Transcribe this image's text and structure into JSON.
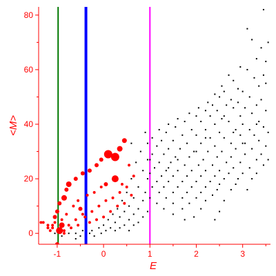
{
  "chart_data": {
    "type": "scatter",
    "title": "",
    "xlabel": "E",
    "ylabel": "<M>",
    "xlim": [
      -1.4,
      3.6
    ],
    "ylim": [
      -4,
      83
    ],
    "xticks": [
      -1,
      0,
      1,
      2,
      3
    ],
    "xtick_labels": [
      "-1",
      "0",
      "1",
      "2",
      "3"
    ],
    "yticks": [
      0,
      20,
      40,
      60,
      80
    ],
    "ytick_labels": [
      "0",
      "20",
      "40",
      "60",
      "80"
    ],
    "grid": false,
    "legend": "none",
    "colors": {
      "axis": "#ff0000",
      "label": "#ff0000",
      "frame": "#000000",
      "line_green": "#007700",
      "line_blue": "#0000ff",
      "line_magenta": "#ff00ff",
      "points_black": "#000000",
      "points_red": "#ff0000"
    },
    "vlines": [
      {
        "x": -0.98,
        "color": "#007700",
        "width": 2
      },
      {
        "x": -0.38,
        "color": "#0000ff",
        "width": 4
      },
      {
        "x": 1.0,
        "color": "#ff00ff",
        "width": 2
      }
    ],
    "series": [
      {
        "marker": "black-dot",
        "points": [
          [
            3.45,
            82
          ],
          [
            3.1,
            75
          ],
          [
            3.2,
            71
          ],
          [
            3.4,
            68
          ],
          [
            3.55,
            70
          ],
          [
            3.3,
            64
          ],
          [
            3.5,
            63
          ],
          [
            2.95,
            61
          ],
          [
            3.1,
            60
          ],
          [
            2.7,
            58
          ],
          [
            2.8,
            56
          ],
          [
            3.25,
            57
          ],
          [
            3.45,
            58
          ],
          [
            2.55,
            54
          ],
          [
            2.6,
            52
          ],
          [
            2.9,
            53
          ],
          [
            3.0,
            52
          ],
          [
            3.35,
            54
          ],
          [
            3.5,
            55
          ],
          [
            2.4,
            51
          ],
          [
            2.5,
            50
          ],
          [
            2.75,
            49
          ],
          [
            3.15,
            50
          ],
          [
            2.25,
            48
          ],
          [
            2.35,
            47
          ],
          [
            2.65,
            47
          ],
          [
            2.9,
            48
          ],
          [
            3.4,
            49
          ],
          [
            2.05,
            46
          ],
          [
            2.2,
            45
          ],
          [
            2.45,
            45
          ],
          [
            2.8,
            46
          ],
          [
            3.05,
            46
          ],
          [
            3.3,
            47
          ],
          [
            1.85,
            44
          ],
          [
            2.0,
            43
          ],
          [
            2.3,
            43
          ],
          [
            2.55,
            42
          ],
          [
            2.95,
            43
          ],
          [
            3.2,
            44
          ],
          [
            3.5,
            45
          ],
          [
            1.6,
            42
          ],
          [
            1.75,
            41
          ],
          [
            2.1,
            41
          ],
          [
            2.4,
            40
          ],
          [
            2.7,
            41
          ],
          [
            3.0,
            40
          ],
          [
            3.35,
            41
          ],
          [
            1.4,
            40
          ],
          [
            1.55,
            39
          ],
          [
            1.9,
            38
          ],
          [
            2.2,
            38
          ],
          [
            2.5,
            37
          ],
          [
            2.85,
            38
          ],
          [
            3.15,
            38
          ],
          [
            3.45,
            39
          ],
          [
            1.2,
            38
          ],
          [
            1.35,
            37
          ],
          [
            1.7,
            36
          ],
          [
            2.0,
            36
          ],
          [
            2.3,
            35
          ],
          [
            2.6,
            35
          ],
          [
            2.95,
            36
          ],
          [
            3.25,
            36
          ],
          [
            3.55,
            37
          ],
          [
            1.05,
            35
          ],
          [
            1.25,
            34
          ],
          [
            1.5,
            34
          ],
          [
            1.8,
            33
          ],
          [
            2.1,
            33
          ],
          [
            2.4,
            32
          ],
          [
            2.75,
            33
          ],
          [
            3.05,
            33
          ],
          [
            3.35,
            34
          ],
          [
            1.15,
            32
          ],
          [
            1.4,
            31
          ],
          [
            1.65,
            31
          ],
          [
            1.95,
            30
          ],
          [
            2.25,
            30
          ],
          [
            2.55,
            30
          ],
          [
            2.85,
            31
          ],
          [
            3.2,
            31
          ],
          [
            3.5,
            32
          ],
          [
            1.05,
            29
          ],
          [
            1.3,
            29
          ],
          [
            1.55,
            28
          ],
          [
            1.85,
            28
          ],
          [
            2.15,
            27
          ],
          [
            2.45,
            28
          ],
          [
            2.75,
            28
          ],
          [
            3.05,
            29
          ],
          [
            3.4,
            29
          ],
          [
            1.0,
            27
          ],
          [
            1.2,
            26
          ],
          [
            1.45,
            26
          ],
          [
            1.75,
            25
          ],
          [
            2.05,
            25
          ],
          [
            2.35,
            25
          ],
          [
            2.65,
            26
          ],
          [
            2.95,
            26
          ],
          [
            3.3,
            27
          ],
          [
            3.55,
            27
          ],
          [
            1.1,
            24
          ],
          [
            1.35,
            23
          ],
          [
            1.6,
            23
          ],
          [
            1.9,
            23
          ],
          [
            2.2,
            23
          ],
          [
            2.5,
            23
          ],
          [
            2.8,
            24
          ],
          [
            3.15,
            24
          ],
          [
            3.45,
            25
          ],
          [
            1.0,
            22
          ],
          [
            1.25,
            21
          ],
          [
            1.5,
            21
          ],
          [
            1.8,
            21
          ],
          [
            2.1,
            21
          ],
          [
            2.4,
            21
          ],
          [
            2.7,
            22
          ],
          [
            3.0,
            22
          ],
          [
            3.3,
            22
          ],
          [
            1.15,
            19
          ],
          [
            1.4,
            19
          ],
          [
            1.7,
            19
          ],
          [
            2.0,
            19
          ],
          [
            2.3,
            19
          ],
          [
            2.6,
            20
          ],
          [
            2.9,
            20
          ],
          [
            3.2,
            20
          ],
          [
            1.05,
            17
          ],
          [
            1.3,
            17
          ],
          [
            1.6,
            17
          ],
          [
            1.9,
            17
          ],
          [
            2.2,
            17
          ],
          [
            2.5,
            18
          ],
          [
            2.85,
            18
          ],
          [
            1.2,
            15
          ],
          [
            1.5,
            15
          ],
          [
            1.8,
            15
          ],
          [
            2.1,
            15
          ],
          [
            2.45,
            16
          ],
          [
            2.75,
            16
          ],
          [
            3.1,
            16
          ],
          [
            1.0,
            13
          ],
          [
            1.35,
            13
          ],
          [
            1.7,
            13
          ],
          [
            2.0,
            13
          ],
          [
            2.35,
            14
          ],
          [
            1.15,
            11
          ],
          [
            1.5,
            11
          ],
          [
            1.85,
            11
          ],
          [
            2.2,
            12
          ],
          [
            2.6,
            12
          ],
          [
            1.3,
            9
          ],
          [
            1.7,
            9
          ],
          [
            2.1,
            9
          ],
          [
            2.5,
            8
          ],
          [
            1.5,
            7
          ],
          [
            1.95,
            6
          ],
          [
            2.4,
            5
          ],
          [
            1.75,
            5
          ],
          [
            0.9,
            37
          ],
          [
            0.6,
            33
          ],
          [
            0.8,
            30
          ],
          [
            0.95,
            27
          ],
          [
            0.7,
            26
          ],
          [
            0.85,
            23
          ],
          [
            0.95,
            20
          ],
          [
            0.6,
            20
          ],
          [
            0.75,
            17
          ],
          [
            0.9,
            15
          ],
          [
            0.5,
            15
          ],
          [
            0.65,
            13
          ],
          [
            0.85,
            12
          ],
          [
            0.4,
            12
          ],
          [
            0.55,
            10
          ],
          [
            0.75,
            9
          ],
          [
            0.95,
            8
          ],
          [
            0.3,
            9
          ],
          [
            0.45,
            8
          ],
          [
            0.65,
            7
          ],
          [
            0.85,
            6
          ],
          [
            0.2,
            7
          ],
          [
            0.35,
            6
          ],
          [
            0.55,
            5
          ],
          [
            0.75,
            4
          ],
          [
            0.1,
            5
          ],
          [
            0.25,
            4
          ],
          [
            0.45,
            3
          ],
          [
            0.65,
            3
          ],
          [
            0.0,
            3
          ],
          [
            0.15,
            2
          ],
          [
            0.35,
            2
          ],
          [
            0.55,
            1
          ],
          [
            -0.1,
            2
          ],
          [
            0.05,
            1
          ],
          [
            0.25,
            1
          ],
          [
            -0.25,
            1
          ],
          [
            -0.05,
            0
          ],
          [
            -0.45,
            1
          ],
          [
            -0.3,
            0
          ],
          [
            -0.6,
            0
          ],
          [
            -0.5,
            -1
          ],
          [
            -0.75,
            0
          ],
          [
            -0.9,
            -1
          ],
          [
            -1.05,
            0
          ],
          [
            -0.6,
            -2
          ],
          [
            -0.2,
            -1
          ],
          [
            2.0,
            30
          ],
          [
            2.6,
            43
          ],
          [
            1.6,
            27
          ],
          [
            3.0,
            33
          ],
          [
            2.8,
            37
          ],
          [
            1.4,
            24
          ],
          [
            3.3,
            40
          ],
          [
            2.2,
            35
          ],
          [
            0.95,
            33
          ]
        ]
      },
      {
        "marker": "red-circle",
        "points": [
          [
            0.45,
            34,
            3.5
          ],
          [
            0.35,
            31,
            4
          ],
          [
            0.25,
            28,
            6
          ],
          [
            0.1,
            29,
            6
          ],
          [
            -0.05,
            27,
            3
          ],
          [
            -0.15,
            25,
            3
          ],
          [
            -0.3,
            23,
            3
          ],
          [
            -0.45,
            22,
            3
          ],
          [
            -0.6,
            20,
            3
          ],
          [
            -0.75,
            18,
            4
          ],
          [
            -0.8,
            16,
            3
          ],
          [
            -0.85,
            13,
            4
          ],
          [
            -0.95,
            11,
            3
          ],
          [
            -1.0,
            8,
            3
          ],
          [
            -1.05,
            6,
            3
          ],
          [
            -0.9,
            3,
            4
          ],
          [
            -0.95,
            1,
            5
          ],
          [
            -1.1,
            2,
            2
          ],
          [
            -1.2,
            3,
            2
          ],
          [
            -1.3,
            4,
            2
          ],
          [
            -1.35,
            4,
            2
          ],
          [
            -1.15,
            1,
            2
          ],
          [
            -1.0,
            -4,
            3
          ],
          [
            -0.85,
            0,
            2
          ],
          [
            0.25,
            20,
            5
          ],
          [
            0.05,
            18,
            3
          ],
          [
            -0.05,
            17,
            2
          ],
          [
            -0.2,
            15,
            2
          ],
          [
            -0.35,
            14,
            2
          ],
          [
            -0.55,
            12,
            2
          ],
          [
            -0.65,
            10,
            2
          ],
          [
            -0.8,
            7,
            2
          ],
          [
            -0.9,
            5,
            2
          ],
          [
            -0.5,
            9,
            3
          ],
          [
            -0.45,
            7,
            2
          ],
          [
            -0.6,
            5,
            2
          ],
          [
            -0.75,
            3,
            2
          ],
          [
            -0.85,
            1,
            2
          ],
          [
            0.55,
            25,
            2
          ],
          [
            0.65,
            21,
            2
          ],
          [
            0.4,
            18,
            2
          ],
          [
            0.35,
            15,
            2
          ],
          [
            0.2,
            13,
            2
          ],
          [
            0.05,
            12,
            2
          ],
          [
            -0.1,
            10,
            2
          ],
          [
            -0.25,
            8,
            2
          ],
          [
            -0.4,
            6,
            2
          ],
          [
            -0.55,
            3,
            2
          ],
          [
            -0.7,
            2,
            2
          ],
          [
            -1.1,
            3,
            2
          ],
          [
            -1.2,
            2,
            2
          ],
          [
            -1.05,
            4,
            2
          ],
          [
            0.5,
            17,
            2
          ],
          [
            0.6,
            14,
            2
          ],
          [
            0.45,
            11,
            2
          ],
          [
            0.3,
            10,
            2
          ],
          [
            0.15,
            8,
            2
          ],
          [
            0.0,
            6,
            2
          ],
          [
            -0.15,
            5,
            2
          ],
          [
            -0.3,
            4,
            2
          ]
        ]
      }
    ]
  }
}
